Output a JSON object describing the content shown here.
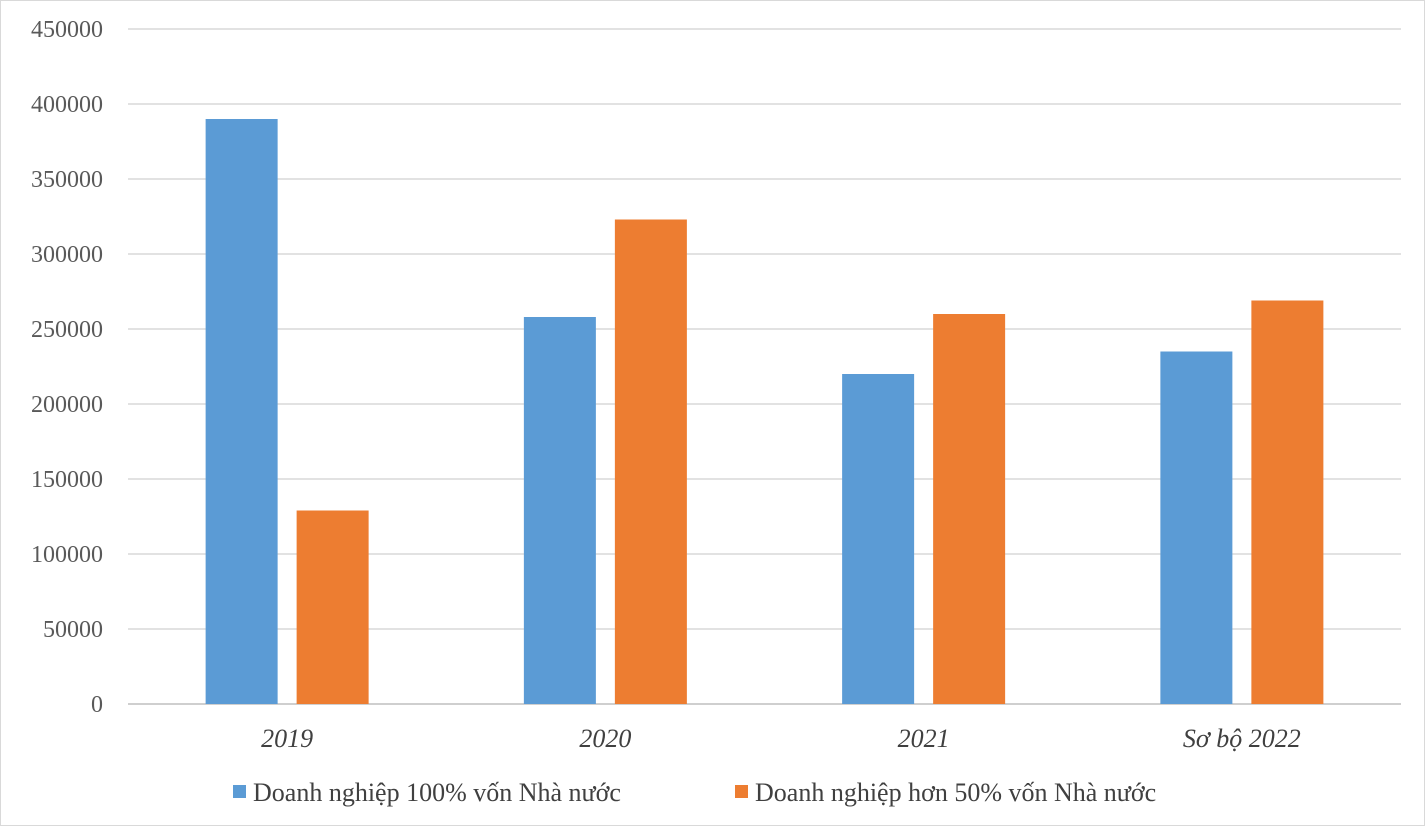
{
  "chart_data": {
    "type": "bar",
    "title": "",
    "xlabel": "",
    "ylabel": "",
    "categories": [
      "2019",
      "2020",
      "2021",
      "Sơ bộ 2022"
    ],
    "series": [
      {
        "name": "Doanh nghiệp 100% vốn Nhà nước",
        "color": "#5B9BD5",
        "values": [
          390000,
          258000,
          220000,
          235000
        ]
      },
      {
        "name": "Doanh nghiệp hơn 50% vốn Nhà nước",
        "color": "#ED7D31",
        "values": [
          129000,
          323000,
          260000,
          269000
        ]
      }
    ],
    "ylim": [
      0,
      450000
    ],
    "yticks": [
      0,
      50000,
      100000,
      150000,
      200000,
      250000,
      300000,
      350000,
      400000,
      450000
    ],
    "ytick_labels": [
      "0",
      "50000",
      "100000",
      "150000",
      "200000",
      "250000",
      "300000",
      "350000",
      "400000",
      "450000"
    ],
    "grid": true,
    "legend_position": "bottom"
  }
}
